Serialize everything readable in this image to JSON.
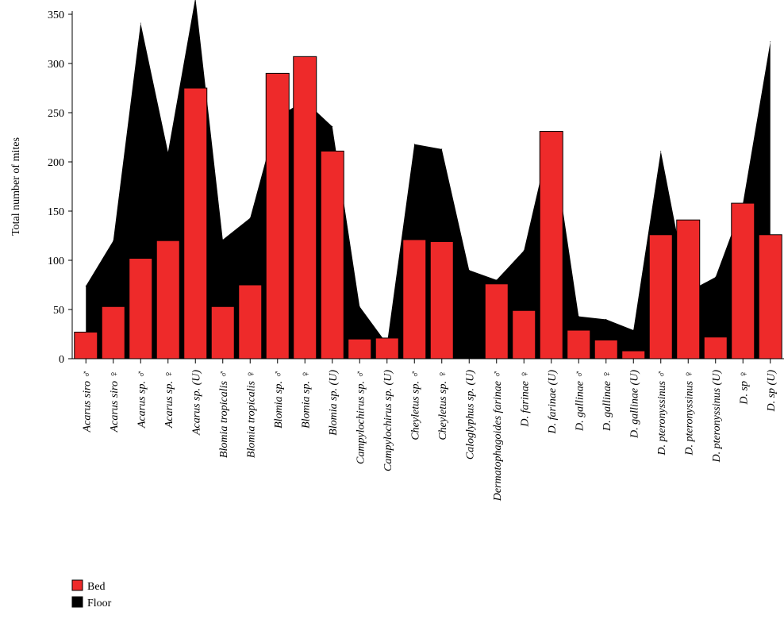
{
  "chart_data": {
    "type": "bar",
    "ylabel": "Total number of mites",
    "ylim": [
      0,
      350
    ],
    "yticks": [
      0,
      50,
      100,
      150,
      200,
      250,
      300,
      350
    ],
    "categories": [
      "Acarus siro ♂",
      "Acarus siro ♀",
      "Acarus sp. ♂",
      "Acarus sp. ♀",
      "Acarus sp. (U)",
      "Blomia tropicalis ♂",
      "Blomia tropicalis ♀",
      "Blomia sp. ♂",
      "Blomia sp. ♀",
      "Blomia sp. (U)",
      "Campylochirus sp. ♂",
      "Campylochirus sp. (U)",
      "Cheyletus sp. ♂",
      "Cheyletus sp. ♀",
      "Caloglyphus sp. (U)",
      "Dermatophagoides farinae ♂",
      "D. farinae ♀",
      "D. farinae (U)",
      "D. gallinae ♂",
      "D. gallinae ♀",
      "D. gallinae (U)",
      "D. pteronyssinus ♂",
      "D. pteronyssinus ♀",
      "D. pteronyssinus (U)",
      "D. sp ♀",
      "D. sp (U)"
    ],
    "series": [
      {
        "name": "Bed",
        "chart": "bar",
        "color": "#ee2a2a",
        "values": [
          27,
          53,
          102,
          120,
          275,
          53,
          75,
          290,
          307,
          211,
          20,
          21,
          121,
          119,
          0,
          76,
          49,
          231,
          29,
          19,
          8,
          126,
          141,
          22,
          158,
          126
        ]
      },
      {
        "name": "Floor",
        "chart": "area",
        "color": "#000000",
        "values": [
          74,
          120,
          341,
          210,
          367,
          121,
          143,
          246,
          262,
          236,
          53,
          15,
          218,
          213,
          90,
          80,
          110,
          230,
          43,
          40,
          29,
          211,
          68,
          83,
          158,
          322
        ]
      }
    ],
    "legend": "bottom-left"
  }
}
